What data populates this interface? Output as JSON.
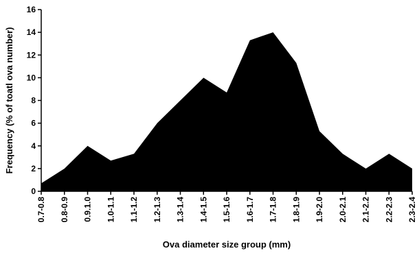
{
  "chart_data": {
    "type": "area",
    "categories": [
      "0.7-0.8",
      "0.8-0.9",
      "0.9.1.0",
      "1.0-1.1",
      "1.1-1.2",
      "1.2-1.3",
      "1.3-1.4",
      "1.4-1.5",
      "1.5-1.6",
      "1.6-1.7",
      "1.7-1.8",
      "1.8-1.9",
      "1.9-2.0",
      "2.0-2.1",
      "2.1-2.2",
      "2.2-2.3",
      "2.3-2.4"
    ],
    "values": [
      0.7,
      2.0,
      4.0,
      2.7,
      3.3,
      6.0,
      8.0,
      10.0,
      8.7,
      13.3,
      14.0,
      11.3,
      5.3,
      3.3,
      2.0,
      3.3,
      2.0
    ],
    "xlabel": "Ova diameter size group (mm)",
    "ylabel": "Frequency (% of toatl ova number)",
    "ylim": [
      0,
      16
    ],
    "yticks": [
      0,
      2,
      4,
      6,
      8,
      10,
      12,
      14,
      16
    ],
    "grid": false,
    "fill_color": "#000000"
  }
}
